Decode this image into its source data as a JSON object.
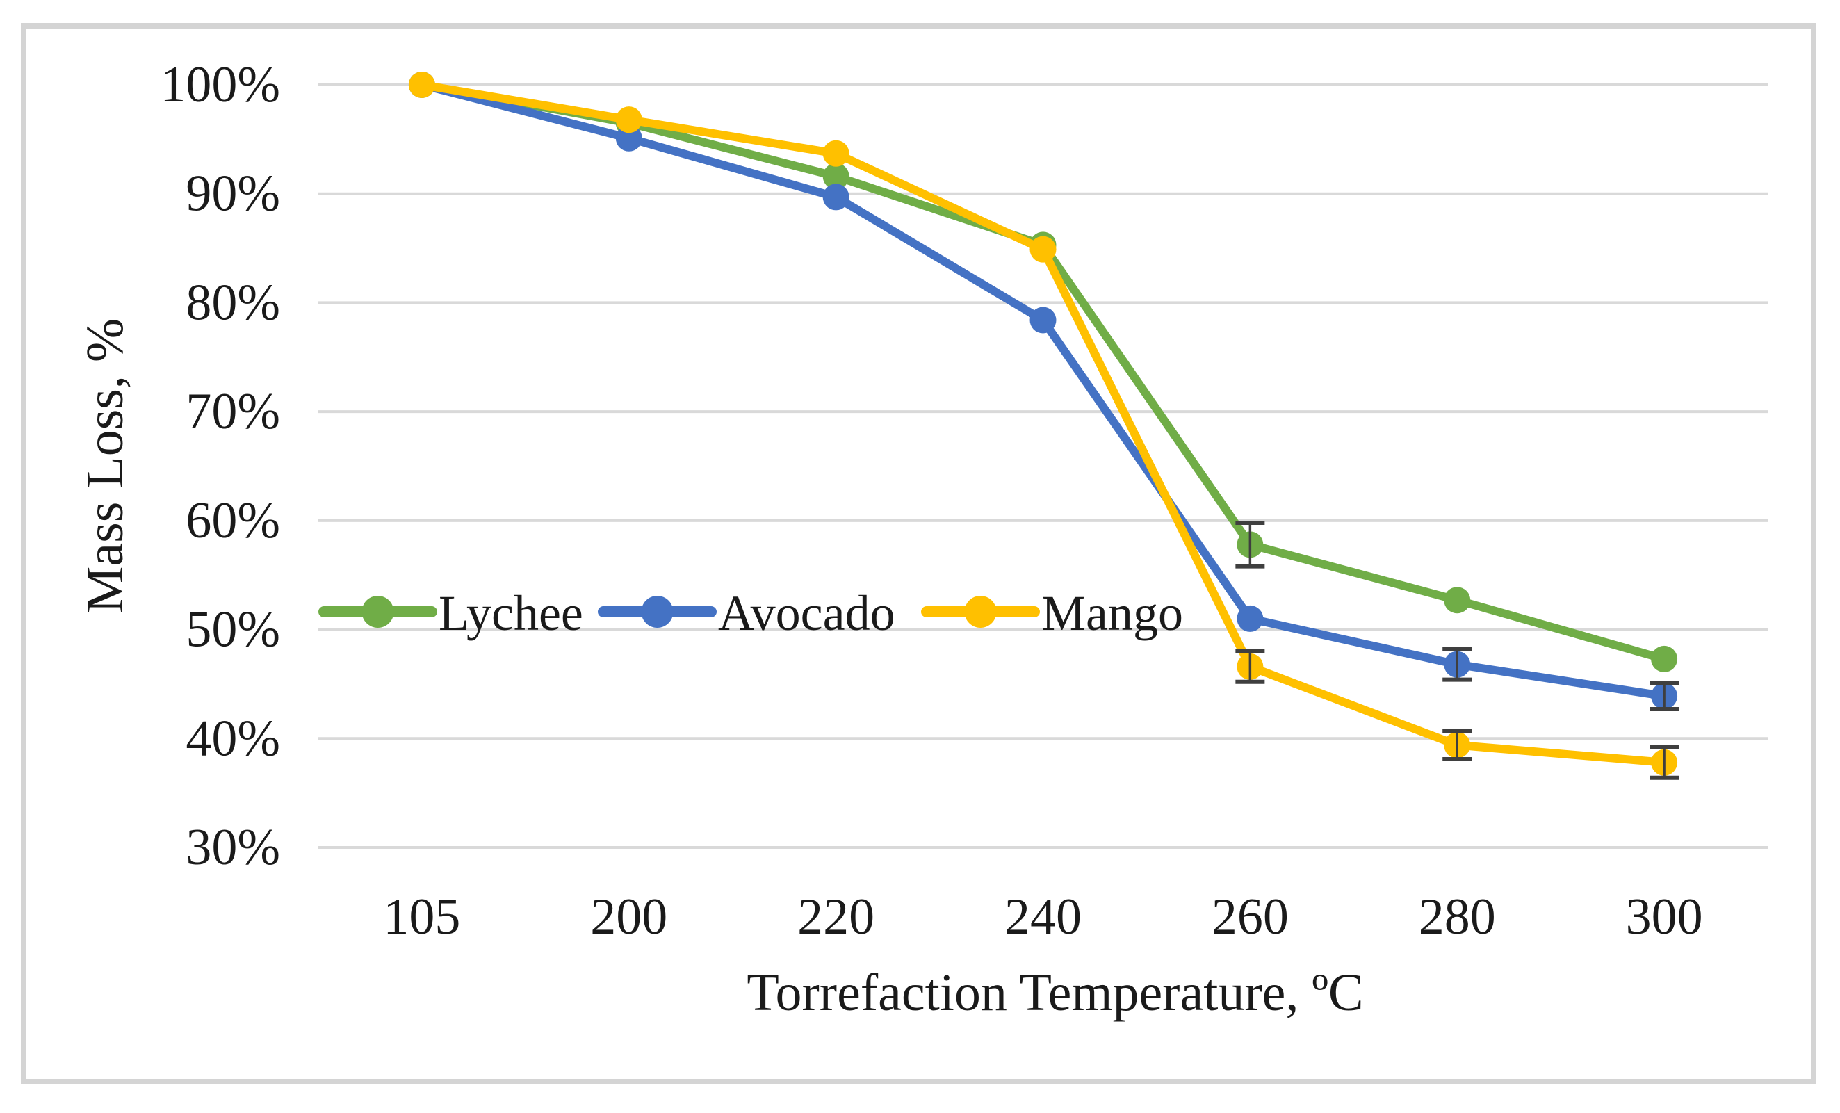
{
  "figure": {
    "background": "#ffffff",
    "border_color": "#d4d4d4"
  },
  "chart_data": {
    "type": "line",
    "title": "",
    "xlabel": "Torrefaction Temperature, ºC",
    "ylabel": "Mass Loss, %",
    "categories": [
      "105",
      "200",
      "220",
      "240",
      "260",
      "280",
      "300"
    ],
    "x_numeric": [
      105,
      200,
      220,
      240,
      260,
      280,
      300
    ],
    "y_ticks": [
      "100%",
      "90%",
      "80%",
      "70%",
      "60%",
      "50%",
      "40%",
      "30%"
    ],
    "y_tick_values": [
      100,
      90,
      80,
      70,
      60,
      50,
      40,
      30
    ],
    "ylim": [
      30,
      100
    ],
    "grid": true,
    "gridline_color": "#d9d9d9",
    "error_bar_color": "#3f3f3f",
    "legend_position": "inside-middle-left",
    "series": [
      {
        "name": "Lychee",
        "color": "#70AD47",
        "values": [
          100,
          96.5,
          91.6,
          85.3,
          57.8,
          52.7,
          47.3
        ],
        "error": [
          0,
          0,
          0,
          0,
          2.0,
          0,
          0
        ]
      },
      {
        "name": "Avocado",
        "color": "#4472C4",
        "values": [
          100,
          95.1,
          89.7,
          78.4,
          51.0,
          46.8,
          43.9
        ],
        "error": [
          0,
          0,
          0,
          0,
          0,
          1.4,
          1.2
        ]
      },
      {
        "name": "Mango",
        "color": "#FFC000",
        "values": [
          100,
          96.8,
          93.7,
          84.9,
          46.6,
          39.4,
          37.8
        ],
        "error": [
          0,
          0,
          0,
          0,
          1.4,
          1.3,
          1.4
        ]
      }
    ]
  }
}
